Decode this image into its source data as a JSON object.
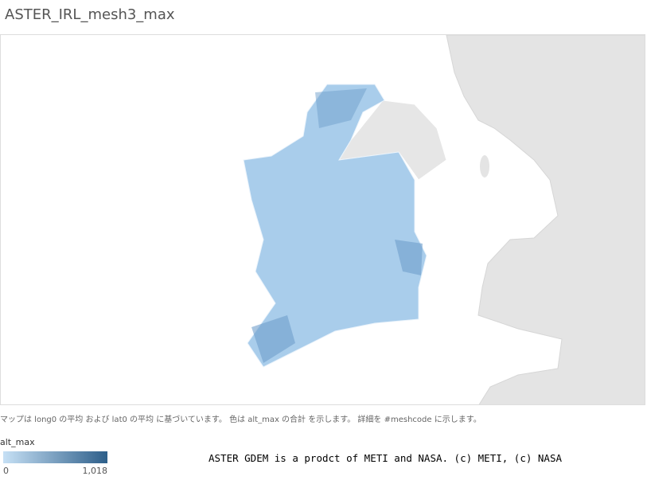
{
  "title": "ASTER_IRL_mesh3_max",
  "map": {
    "caption": "マップは long0 の平均 および lat0 の平均 に基づいています。 色は alt_max の合計 を示します。 詳細を #meshcode に示します。",
    "legend": {
      "title": "alt_max",
      "min": 0,
      "max": {
        "value": 1018,
        "label": "1,018"
      },
      "colors": [
        "#c6e0f5",
        "#2e5f8a"
      ]
    }
  },
  "attribution": "ASTER GDEM is a prodct of METI and NASA. (c) METI, (c) NASA"
}
